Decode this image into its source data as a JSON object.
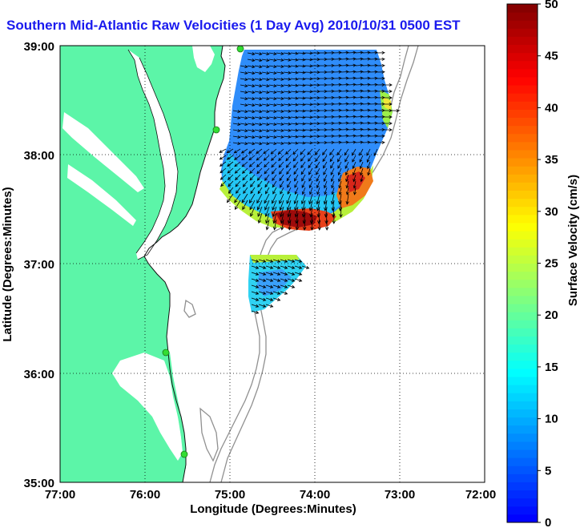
{
  "title": "Southern Mid-Atlantic Raw Velocities (1 Day Avg) 2010/10/31 0500 EST",
  "map": {
    "xlabel": "Longitude (Degrees:Minutes)",
    "ylabel": "Latitude (Degrees:Minutes)",
    "x_ticks": [
      "77:00",
      "76:00",
      "75:00",
      "74:00",
      "73:00",
      "72:00"
    ],
    "y_ticks": [
      "35:00",
      "36:00",
      "37:00",
      "38:00",
      "39:00"
    ],
    "colors": {
      "land": "#5cf5a8",
      "ocean": "#ffffff",
      "isobath": "#909090",
      "station": "#33dd33"
    }
  },
  "colorbar": {
    "label": "Surface Velocity (cm/s)",
    "min": 0,
    "max": 50,
    "ticks": [
      "0",
      "5",
      "10",
      "15",
      "20",
      "25",
      "30",
      "35",
      "40",
      "45",
      "50"
    ]
  }
}
